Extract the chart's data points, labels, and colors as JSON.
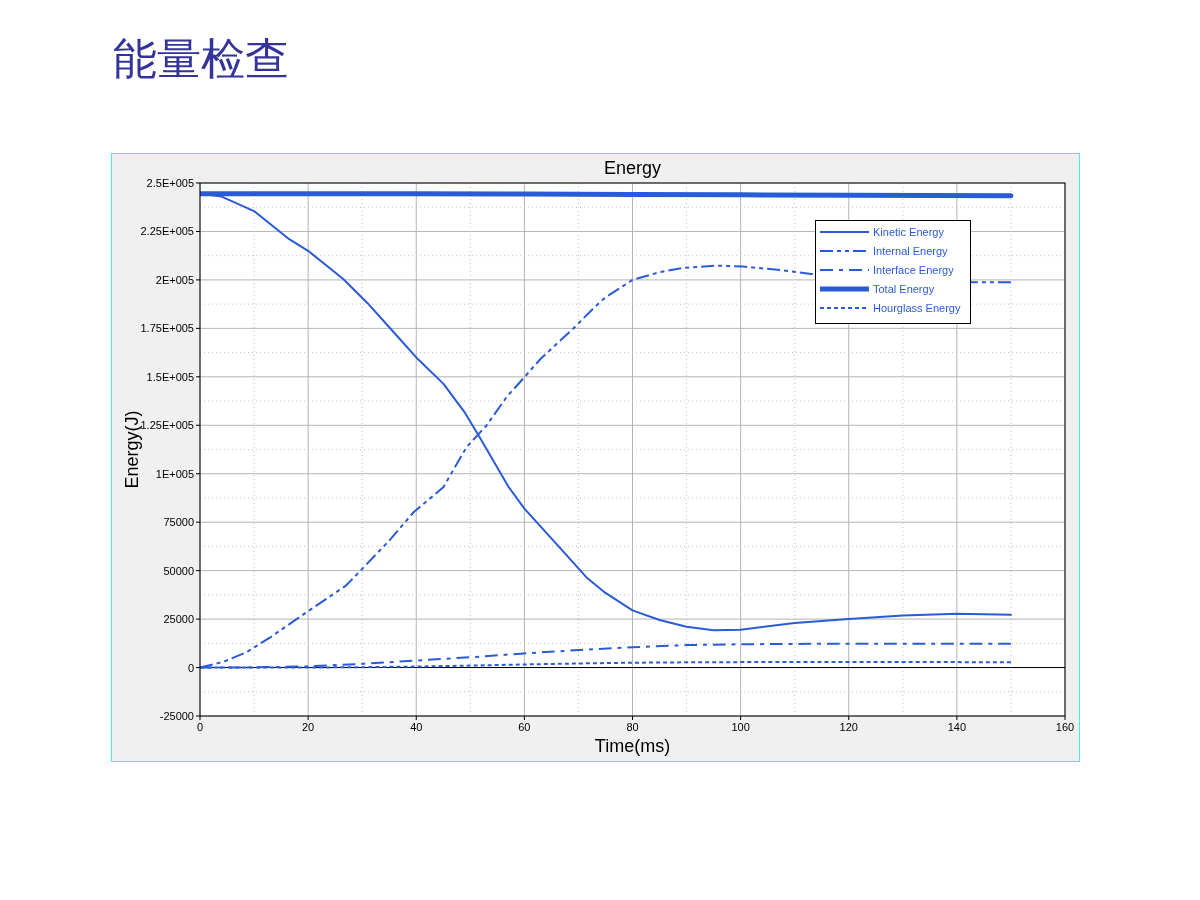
{
  "chart_data": {
    "type": "line",
    "title": "能量检查",
    "subtitle": "Energy",
    "xlabel": "Time(ms)",
    "ylabel": "Energy(J)",
    "xlim": [
      0,
      160
    ],
    "xticks": [
      0,
      {
        "value": 10,
        "label": null
      },
      20,
      {
        "value": 30,
        "label": null
      },
      40,
      {
        "value": 50,
        "label": null
      },
      60,
      {
        "value": 70,
        "label": null
      },
      80,
      {
        "value": 90,
        "label": null
      },
      100,
      {
        "value": 110,
        "label": null
      },
      120,
      {
        "value": 130,
        "label": null
      },
      140,
      {
        "value": 150,
        "label": null
      },
      160
    ],
    "ylim": [
      -25000,
      250000
    ],
    "yticks": [
      -25000,
      {
        "value": -12500,
        "label": null
      },
      0,
      {
        "value": 12500,
        "label": null
      },
      25000,
      {
        "value": 37500,
        "label": null
      },
      50000,
      {
        "value": 62500,
        "label": null
      },
      75000,
      {
        "value": 87500,
        "label": null
      },
      {
        "value": 100000,
        "label": "1E+005"
      },
      {
        "value": 112500,
        "label": null
      },
      {
        "value": 125000,
        "label": "1.25E+005"
      },
      {
        "value": 137500,
        "label": null
      },
      {
        "value": 150000,
        "label": "1.5E+005"
      },
      {
        "value": 162500,
        "label": null
      },
      {
        "value": 175000,
        "label": "1.75E+005"
      },
      {
        "value": 187500,
        "label": null
      },
      {
        "value": 200000,
        "label": "2E+005"
      },
      {
        "value": 212500,
        "label": null
      },
      {
        "value": 225000,
        "label": "2.25E+005"
      },
      {
        "value": 237500,
        "label": null
      },
      {
        "value": 250000,
        "label": "2.5E+005"
      }
    ],
    "grid": true,
    "legend": "top right",
    "ref_lines": [
      {
        "axis": "y",
        "value": 0,
        "color": "#000000"
      }
    ],
    "series": [
      {
        "name": "Kinetic Energy",
        "color": "#2a5bd7",
        "line_style": "solid",
        "x": [
          0,
          4,
          10,
          16.5,
          20,
          26.5,
          31,
          36,
          40,
          45,
          49,
          52,
          57,
          60,
          66.5,
          71.5,
          75,
          80,
          85,
          90,
          95,
          100,
          110,
          120,
          130,
          140,
          150
        ],
        "values": [
          244500,
          243000,
          235500,
          221000,
          215000,
          200500,
          188000,
          172500,
          160000,
          146500,
          131500,
          117500,
          93500,
          82000,
          62000,
          46500,
          38500,
          29500,
          24500,
          21000,
          19200,
          19500,
          23000,
          25000,
          26800,
          27700,
          27200
        ]
      },
      {
        "name": "Internal Energy",
        "color": "#2a5bd7",
        "line_style": "dashdotdot",
        "x": [
          0,
          4.3,
          8.6,
          13,
          19.7,
          27,
          30,
          35,
          39.5,
          45,
          49.3,
          53,
          56.7,
          60,
          63,
          69,
          73,
          75,
          80,
          85,
          89.5,
          95.5,
          100.5,
          108,
          113,
          143,
          150
        ],
        "values": [
          0,
          2900,
          7900,
          15600,
          28500,
          42300,
          50900,
          65500,
          80100,
          93000,
          113700,
          124900,
          139500,
          149800,
          159300,
          174800,
          186000,
          191000,
          200000,
          204000,
          206200,
          207400,
          206900,
          204900,
          203100,
          198800,
          198800
        ]
      },
      {
        "name": "Interface Energy",
        "color": "#2a5bd7",
        "line_style": "dashdot",
        "x": [
          0,
          10,
          20,
          30,
          40,
          50,
          60,
          70,
          80,
          90,
          100,
          110,
          120,
          130,
          140,
          150
        ],
        "values": [
          0,
          100,
          600,
          1900,
          3600,
          5300,
          7300,
          9000,
          10500,
          11600,
          12000,
          12200,
          12300,
          12300,
          12300,
          12300
        ]
      },
      {
        "name": "Total Energy",
        "color": "#2a5bd7",
        "line_style": "solid",
        "x": [
          0,
          20,
          40,
          60,
          80,
          100,
          120,
          150
        ],
        "values": [
          244500,
          244500,
          244500,
          244300,
          244100,
          243900,
          243700,
          243400
        ]
      },
      {
        "name": "Hourglass Energy",
        "color": "#2a5bd7",
        "line_style": "dotted",
        "x": [
          0,
          20,
          30,
          40,
          50,
          60,
          70,
          80,
          90,
          100,
          120,
          140,
          150
        ],
        "values": [
          0,
          0,
          200,
          500,
          1000,
          1600,
          2100,
          2500,
          2700,
          2800,
          2800,
          2800,
          2700
        ]
      }
    ]
  }
}
